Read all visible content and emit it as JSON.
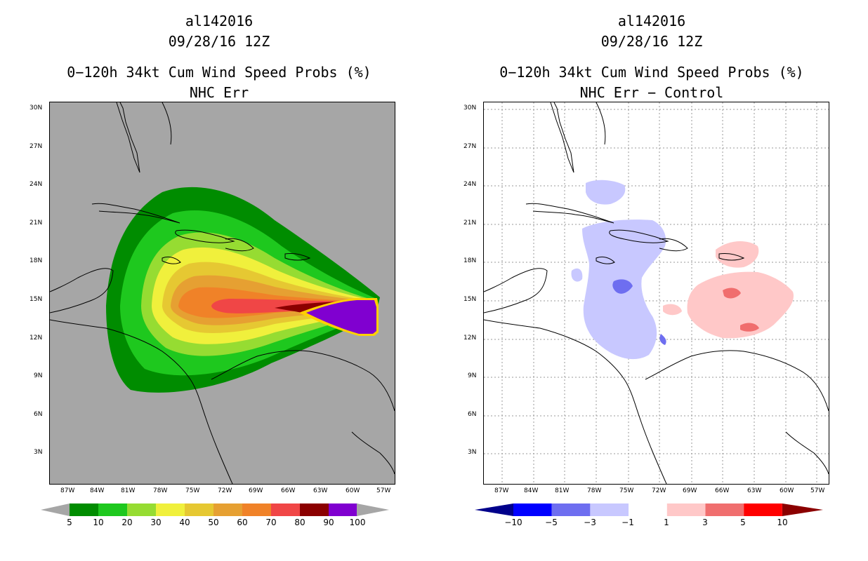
{
  "storm_id": "al142016",
  "datetime": "09/28/16 12Z",
  "left": {
    "product_title": "0−120h 34kt Cum Wind Speed Probs (%)",
    "subtitle": "NHC Err",
    "background": "#a6a6a6",
    "colorbar": {
      "labels": [
        "5",
        "10",
        "20",
        "30",
        "40",
        "50",
        "60",
        "70",
        "80",
        "90",
        "100"
      ],
      "colors": [
        "#008c00",
        "#1ec81e",
        "#96dc32",
        "#f0f03c",
        "#e6c832",
        "#e6a032",
        "#f08228",
        "#f04646",
        "#8b0000",
        "#8000d0"
      ],
      "under": "#a6a6a6",
      "over": "#a6a6a6"
    }
  },
  "right": {
    "product_title": "0−120h 34kt Cum Wind Speed Probs (%)",
    "subtitle": "NHC Err − Control",
    "colorbar": {
      "labels": [
        "−10",
        "−5",
        "−3",
        "−1",
        "1",
        "3",
        "5",
        "10"
      ],
      "colors": [
        "#0000ff",
        "#6e6ef0",
        "#c8c8ff",
        "#ffffff",
        "#ffc8c8",
        "#f06e6e",
        "#ff0000"
      ],
      "under": "#00008b",
      "over": "#8b0000"
    }
  },
  "lon_ticks": [
    "87W",
    "84W",
    "81W",
    "78W",
    "75W",
    "72W",
    "69W",
    "66W",
    "63W",
    "60W",
    "57W"
  ],
  "lat_ticks": [
    "30N",
    "27N",
    "24N",
    "21N",
    "18N",
    "15N",
    "12N",
    "9N",
    "6N",
    "3N"
  ]
}
